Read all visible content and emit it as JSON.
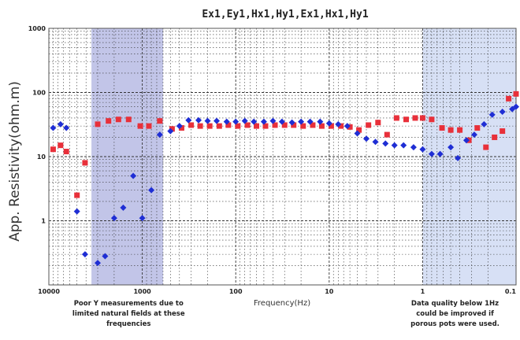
{
  "chart_data": {
    "type": "scatter",
    "title": "Ex1,Ey1,Hx1,Hy1,Ex1,Hx1,Hy1",
    "xlabel": "Frequency(Hz)",
    "ylabel": "App. Resistivity(ohm.m)",
    "x_scale": "log",
    "x_reversed": true,
    "y_scale": "log",
    "xlim": [
      10000,
      0.1
    ],
    "ylim": [
      0.1,
      1000
    ],
    "x_ticks": [
      "10000",
      "1000",
      "100",
      "10",
      "1",
      "0.1"
    ],
    "y_ticks": [
      "1000",
      "100",
      "10",
      "1"
    ],
    "grid": true,
    "colors": {
      "series_a": "#e8303a",
      "series_b": "#1f2ed4",
      "band": "#8f95d6",
      "band_right": "#b7c7ec"
    },
    "bands": [
      {
        "x_range": [
          3500,
          600
        ],
        "color": "#8f95d6"
      },
      {
        "x_range": [
          1,
          0.1
        ],
        "color": "#b7c7ec"
      }
    ],
    "annotations": [
      {
        "lines": [
          "Poor Y measurements due to",
          "limited natural fields at these",
          "frequencies"
        ],
        "x": 1400
      },
      {
        "lines": [
          "Data quality below 1Hz",
          "could be improved if",
          "porous pots were used."
        ],
        "x": 0.45
      }
    ],
    "series": [
      {
        "color": "#e8303a",
        "points": [
          [
            9000,
            13
          ],
          [
            7500,
            15
          ],
          [
            6500,
            12
          ],
          [
            5000,
            2.5
          ],
          [
            4100,
            8
          ],
          [
            3000,
            32
          ],
          [
            2300,
            36
          ],
          [
            1800,
            38
          ],
          [
            1400,
            38
          ],
          [
            1050,
            30
          ],
          [
            850,
            30
          ],
          [
            650,
            36
          ],
          [
            480,
            27
          ],
          [
            380,
            28
          ],
          [
            300,
            31
          ],
          [
            240,
            30
          ],
          [
            190,
            30
          ],
          [
            150,
            30
          ],
          [
            120,
            31
          ],
          [
            95,
            30
          ],
          [
            75,
            31
          ],
          [
            60,
            30
          ],
          [
            48,
            30
          ],
          [
            38,
            31
          ],
          [
            30,
            31
          ],
          [
            24,
            31
          ],
          [
            19,
            30
          ],
          [
            15,
            31
          ],
          [
            12,
            30
          ],
          [
            9.5,
            30
          ],
          [
            7.5,
            30
          ],
          [
            6,
            29
          ],
          [
            4.8,
            26
          ],
          [
            3.8,
            31
          ],
          [
            3,
            34
          ],
          [
            2.4,
            22
          ],
          [
            1.9,
            40
          ],
          [
            1.5,
            38
          ],
          [
            1.2,
            40
          ],
          [
            1,
            40
          ],
          [
            0.8,
            38
          ],
          [
            0.62,
            28
          ],
          [
            0.5,
            26
          ],
          [
            0.4,
            26
          ],
          [
            0.32,
            18
          ],
          [
            0.26,
            28
          ],
          [
            0.21,
            14
          ],
          [
            0.17,
            20
          ],
          [
            0.14,
            25
          ],
          [
            0.12,
            80
          ],
          [
            0.1,
            95
          ]
        ]
      },
      {
        "color": "#1f2ed4",
        "points": [
          [
            9000,
            28
          ],
          [
            7500,
            32
          ],
          [
            6500,
            28
          ],
          [
            5000,
            1.4
          ],
          [
            4100,
            0.3
          ],
          [
            3000,
            0.22
          ],
          [
            2500,
            0.28
          ],
          [
            2000,
            1.1
          ],
          [
            1600,
            1.6
          ],
          [
            1250,
            5
          ],
          [
            1000,
            1.1
          ],
          [
            800,
            3
          ],
          [
            650,
            22
          ],
          [
            500,
            25
          ],
          [
            400,
            30
          ],
          [
            320,
            37
          ],
          [
            250,
            37
          ],
          [
            200,
            36
          ],
          [
            160,
            36
          ],
          [
            125,
            35
          ],
          [
            100,
            35
          ],
          [
            80,
            36
          ],
          [
            64,
            35
          ],
          [
            50,
            35
          ],
          [
            40,
            36
          ],
          [
            32,
            35
          ],
          [
            25,
            34
          ],
          [
            20,
            35
          ],
          [
            16,
            35
          ],
          [
            12.5,
            35
          ],
          [
            10,
            33
          ],
          [
            8,
            32
          ],
          [
            6.4,
            30
          ],
          [
            5,
            23
          ],
          [
            4,
            19
          ],
          [
            3.2,
            17
          ],
          [
            2.5,
            16
          ],
          [
            2,
            15
          ],
          [
            1.6,
            15
          ],
          [
            1.25,
            14
          ],
          [
            1,
            13
          ],
          [
            0.8,
            11
          ],
          [
            0.65,
            11
          ],
          [
            0.5,
            14
          ],
          [
            0.42,
            9.5
          ],
          [
            0.34,
            18
          ],
          [
            0.28,
            22
          ],
          [
            0.22,
            32
          ],
          [
            0.18,
            45
          ],
          [
            0.14,
            50
          ],
          [
            0.11,
            55
          ],
          [
            0.1,
            60
          ]
        ]
      }
    ]
  }
}
